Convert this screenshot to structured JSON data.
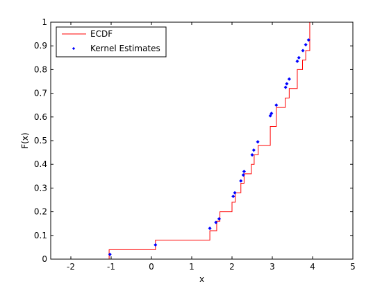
{
  "chart_data": {
    "type": "line",
    "xlabel": "x",
    "ylabel": "F(x)",
    "xlim": [
      -2.5,
      5
    ],
    "ylim": [
      0,
      1
    ],
    "xticks": [
      -2,
      -1,
      0,
      1,
      2,
      3,
      4,
      5
    ],
    "yticks": [
      0,
      0.1,
      0.2,
      0.3,
      0.4,
      0.5,
      0.6,
      0.7,
      0.8,
      0.9,
      1
    ],
    "xtick_labels": [
      "-2",
      "-1",
      "0",
      "1",
      "2",
      "3",
      "4",
      "5"
    ],
    "ytick_labels": [
      "0",
      "0.1",
      "0.2",
      "0.3",
      "0.4",
      "0.5",
      "0.6",
      "0.7",
      "0.8",
      "0.9",
      "1"
    ],
    "grid": false,
    "legend": {
      "position": "top-left",
      "entries": [
        "ECDF",
        "Kernel Estimates"
      ]
    },
    "series": [
      {
        "name": "ECDF",
        "style": "stairs",
        "color": "#ff0000",
        "x": [
          -1.05,
          0.1,
          1.45,
          1.62,
          1.7,
          2.0,
          2.08,
          2.22,
          2.3,
          2.48,
          2.55,
          2.65,
          2.95,
          3.1,
          3.32,
          3.42,
          3.62,
          3.75,
          3.83,
          3.93
        ],
        "y": [
          0.04,
          0.08,
          0.12,
          0.16,
          0.2,
          0.24,
          0.28,
          0.32,
          0.36,
          0.4,
          0.44,
          0.48,
          0.56,
          0.64,
          0.68,
          0.72,
          0.8,
          0.84,
          0.88,
          0.96
        ],
        "y_end": 1.0
      },
      {
        "name": "Kernel Estimates",
        "style": "points",
        "color": "#0000ff",
        "x": [
          -1.03,
          0.1,
          1.45,
          1.6,
          1.68,
          2.03,
          2.07,
          2.22,
          2.28,
          2.3,
          2.5,
          2.54,
          2.64,
          2.95,
          2.98,
          3.1,
          3.33,
          3.36,
          3.42,
          3.62,
          3.66,
          3.76,
          3.83,
          3.9
        ],
        "y": [
          0.02,
          0.06,
          0.13,
          0.155,
          0.17,
          0.265,
          0.28,
          0.33,
          0.355,
          0.37,
          0.44,
          0.46,
          0.495,
          0.605,
          0.615,
          0.65,
          0.725,
          0.74,
          0.76,
          0.835,
          0.85,
          0.88,
          0.905,
          0.925
        ]
      }
    ]
  }
}
